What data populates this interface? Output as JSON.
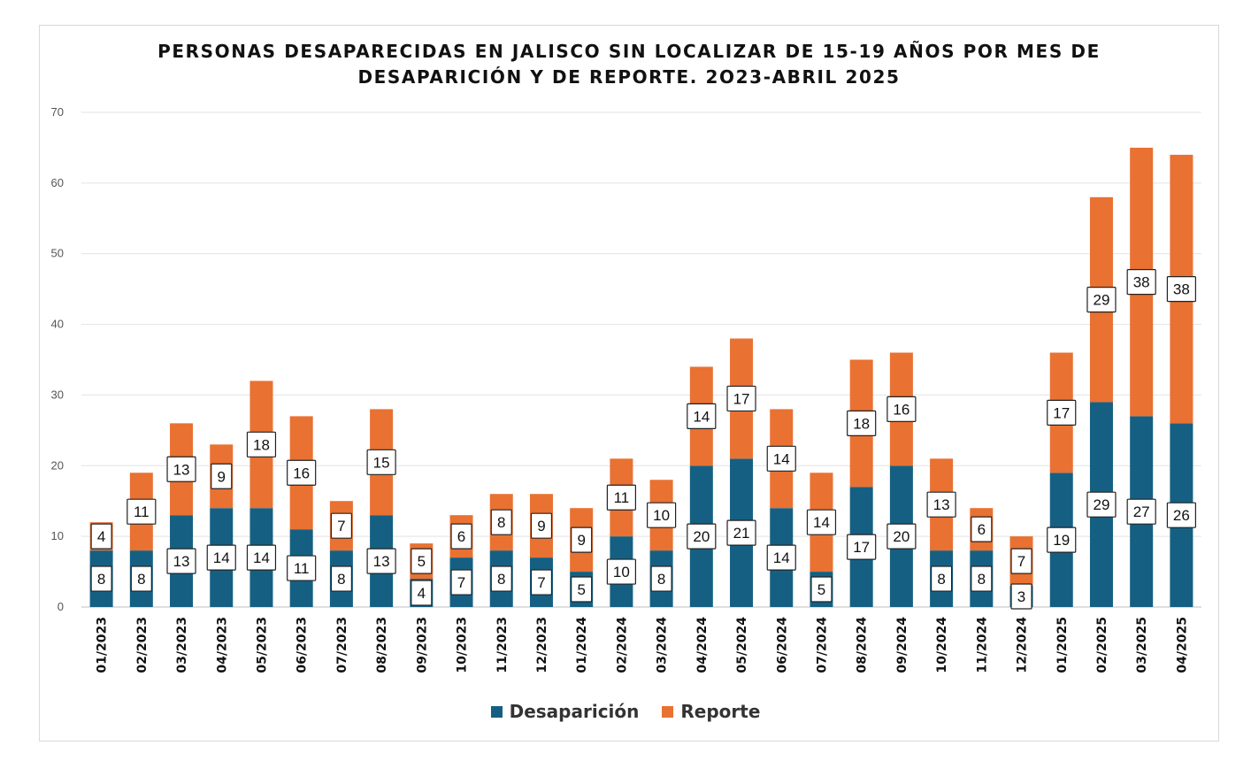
{
  "chart_data": {
    "type": "bar",
    "stacked": true,
    "title_lines": [
      "PERSONAS DESAPARECIDAS EN JALISCO SIN LOCALIZAR DE 15-19 AÑOS POR MES DE",
      "DESAPARICIÓN Y DE REPORTE. 2O23-ABRIL 2025"
    ],
    "xlabel": "",
    "ylabel": "",
    "ylim": [
      0,
      70
    ],
    "yticks": [
      "0",
      "10",
      "20",
      "30",
      "40",
      "50",
      "60",
      "70"
    ],
    "grid": true,
    "legend_position": "bottom",
    "categories": [
      "01/2023",
      "02/2023",
      "03/2023",
      "04/2023",
      "05/2023",
      "06/2023",
      "07/2023",
      "08/2023",
      "09/2023",
      "10/2023",
      "11/2023",
      "12/2023",
      "01/2024",
      "02/2024",
      "03/2024",
      "04/2024",
      "05/2024",
      "06/2024",
      "07/2024",
      "08/2024",
      "09/2024",
      "10/2024",
      "11/2024",
      "12/2024",
      "01/2025",
      "02/2025",
      "03/2025",
      "04/2025"
    ],
    "series": [
      {
        "name": "Desaparición",
        "color": "#156082",
        "values": [
          8,
          8,
          13,
          14,
          14,
          11,
          8,
          13,
          4,
          7,
          8,
          7,
          5,
          10,
          8,
          20,
          21,
          14,
          5,
          17,
          20,
          8,
          8,
          3,
          19,
          29,
          27,
          26
        ]
      },
      {
        "name": "Reporte",
        "color": "#E97132",
        "values": [
          4,
          11,
          13,
          9,
          18,
          16,
          7,
          15,
          5,
          6,
          8,
          9,
          9,
          11,
          10,
          14,
          17,
          14,
          14,
          18,
          16,
          13,
          6,
          7,
          17,
          29,
          38,
          38
        ]
      }
    ]
  }
}
